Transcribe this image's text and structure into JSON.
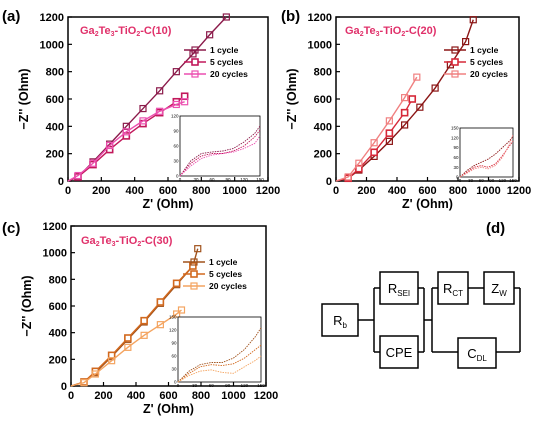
{
  "panels": [
    {
      "letter": "(a)",
      "title": {
        "a": "Ga",
        "s1": "2",
        "b": "Te",
        "s2": "3",
        "c": "-TiO",
        "s3": "2",
        "d": "-C(10)"
      },
      "chart_data": {
        "type": "line",
        "title": "Ga2Te3-TiO2-C(10)",
        "xlabel": "Z' (Ohm)",
        "ylabel": "−Z'' (Ohm)",
        "xlim": [
          0,
          1200
        ],
        "ylim": [
          0,
          1200
        ],
        "xticks": [
          0,
          200,
          400,
          600,
          800,
          1000,
          1200
        ],
        "yticks": [
          0,
          200,
          400,
          600,
          800,
          1000,
          1200
        ],
        "legend_position": "right",
        "series": [
          {
            "name": "1 cycle",
            "color": "#8b1a4a",
            "x": [
              0,
              60,
              150,
              250,
              350,
              450,
              550,
              650,
              750,
              850,
              950
            ],
            "y": [
              0,
              30,
              140,
              270,
              400,
              530,
              660,
              800,
              930,
              1070,
              1200
            ]
          },
          {
            "name": "5 cycles",
            "color": "#c2185b",
            "x": [
              0,
              60,
              150,
              250,
              350,
              450,
              550,
              650,
              700
            ],
            "y": [
              0,
              30,
              120,
              230,
              330,
              420,
              500,
              580,
              620
            ]
          },
          {
            "name": "20 cycles",
            "color": "#ec4fb0",
            "x": [
              0,
              60,
              150,
              250,
              350,
              450,
              550,
              650,
              700
            ],
            "y": [
              0,
              40,
              130,
              260,
              360,
              440,
              510,
              560,
              580
            ]
          }
        ],
        "inset": {
          "xlim": [
            0,
            150
          ],
          "ylim": [
            0,
            120
          ],
          "xticks": [
            0,
            30,
            60,
            90,
            120,
            150
          ],
          "yticks": [
            0,
            30,
            60,
            90,
            120
          ],
          "series": [
            {
              "x": [
                0,
                20,
                40,
                60,
                80,
                100,
                120,
                140,
                150
              ],
              "y": [
                0,
                30,
                45,
                48,
                50,
                55,
                68,
                85,
                100
              ]
            },
            {
              "x": [
                0,
                20,
                40,
                60,
                80,
                100,
                120,
                140,
                150
              ],
              "y": [
                0,
                25,
                40,
                45,
                45,
                50,
                60,
                78,
                92
              ]
            },
            {
              "x": [
                0,
                20,
                40,
                60,
                80,
                100,
                120,
                140,
                150
              ],
              "y": [
                0,
                20,
                35,
                42,
                45,
                48,
                55,
                65,
                80
              ]
            }
          ]
        }
      }
    },
    {
      "letter": "(b)",
      "title": {
        "a": "Ga",
        "s1": "2",
        "b": "Te",
        "s2": "3",
        "c": "-TiO",
        "s3": "2",
        "d": "-C(20)"
      },
      "chart_data": {
        "type": "line",
        "title": "Ga2Te3-TiO2-C(20)",
        "xlabel": "Z' (Ohm)",
        "ylabel": "−Z'' (Ohm)",
        "xlim": [
          0,
          1200
        ],
        "ylim": [
          0,
          1200
        ],
        "xticks": [
          0,
          200,
          400,
          600,
          800,
          1000,
          1200
        ],
        "yticks": [
          0,
          200,
          400,
          600,
          800,
          1000,
          1200
        ],
        "legend_position": "right",
        "series": [
          {
            "name": "1 cycle",
            "color": "#8b1515",
            "x": [
              0,
              80,
              150,
              250,
              350,
              450,
              550,
              650,
              750,
              850,
              900
            ],
            "y": [
              0,
              20,
              80,
              180,
              290,
              410,
              540,
              680,
              850,
              1020,
              1180
            ]
          },
          {
            "name": "5 cycles",
            "color": "#d62839",
            "x": [
              0,
              80,
              150,
              250,
              350,
              450,
              500
            ],
            "y": [
              0,
              20,
              90,
              210,
              350,
              500,
              600
            ]
          },
          {
            "name": "20 cycles",
            "color": "#f08080",
            "x": [
              0,
              80,
              150,
              250,
              350,
              450,
              530
            ],
            "y": [
              0,
              30,
              130,
              280,
              440,
              610,
              760
            ]
          }
        ],
        "inset": {
          "xlim": [
            0,
            150
          ],
          "ylim": [
            0,
            150
          ],
          "xticks": [
            0,
            30,
            60,
            90,
            120,
            150
          ],
          "yticks": [
            0,
            30,
            60,
            90,
            120,
            150
          ],
          "series": [
            {
              "x": [
                0,
                20,
                40,
                60,
                80,
                100,
                120,
                140,
                150
              ],
              "y": [
                0,
                20,
                35,
                45,
                55,
                70,
                90,
                110,
                125
              ]
            },
            {
              "x": [
                0,
                20,
                40,
                60,
                80,
                100,
                120,
                140,
                150
              ],
              "y": [
                0,
                15,
                30,
                35,
                30,
                40,
                65,
                95,
                110
              ]
            },
            {
              "x": [
                0,
                20,
                40,
                60,
                80,
                100,
                120,
                140,
                150
              ],
              "y": [
                0,
                12,
                25,
                30,
                25,
                35,
                60,
                100,
                130
              ]
            }
          ]
        }
      }
    },
    {
      "letter": "(c)",
      "title": {
        "a": "Ga",
        "s1": "2",
        "b": "Te",
        "s2": "3",
        "c": "-TiO",
        "s3": "2",
        "d": "-C(30)"
      },
      "chart_data": {
        "type": "line",
        "title": "Ga2Te3-TiO2-C(30)",
        "xlabel": "Z' (Ohm)",
        "ylabel": "−Z'' (Ohm)",
        "xlim": [
          0,
          1200
        ],
        "ylim": [
          0,
          1200
        ],
        "xticks": [
          0,
          200,
          400,
          600,
          800,
          1000,
          1200
        ],
        "yticks": [
          0,
          200,
          400,
          600,
          800,
          1000,
          1200
        ],
        "legend_position": "right",
        "series": [
          {
            "name": "1 cycle",
            "color": "#a0521c",
            "x": [
              0,
              80,
              150,
              250,
              350,
              450,
              550,
              650,
              750,
              780
            ],
            "y": [
              0,
              30,
              100,
              220,
              350,
              480,
              620,
              760,
              900,
              1030
            ]
          },
          {
            "name": "5 cycles",
            "color": "#d2691e",
            "x": [
              0,
              80,
              150,
              250,
              350,
              450,
              550,
              650,
              750
            ],
            "y": [
              0,
              30,
              110,
              230,
              360,
              490,
              630,
              770,
              900
            ]
          },
          {
            "name": "20 cycles",
            "color": "#f4a460",
            "x": [
              0,
              80,
              150,
              250,
              350,
              450,
              550,
              650,
              680
            ],
            "y": [
              0,
              25,
              90,
              190,
              290,
              380,
              460,
              540,
              570
            ]
          }
        ],
        "inset": {
          "xlim": [
            0,
            150
          ],
          "ylim": [
            0,
            150
          ],
          "xticks": [
            0,
            30,
            60,
            90,
            120,
            150
          ],
          "yticks": [
            0,
            30,
            60,
            90,
            120,
            150
          ],
          "series": [
            {
              "x": [
                0,
                20,
                40,
                60,
                80,
                100,
                120,
                140,
                150
              ],
              "y": [
                0,
                25,
                40,
                45,
                45,
                55,
                75,
                105,
                125
              ]
            },
            {
              "x": [
                0,
                20,
                40,
                60,
                80,
                100,
                120,
                140,
                150
              ],
              "y": [
                0,
                20,
                35,
                40,
                38,
                42,
                55,
                75,
                85
              ]
            },
            {
              "x": [
                0,
                20,
                40,
                60,
                80,
                100,
                120,
                140,
                150
              ],
              "y": [
                0,
                15,
                25,
                28,
                22,
                20,
                35,
                50,
                60
              ]
            }
          ]
        }
      }
    }
  ],
  "circuit": {
    "letter": "(d)",
    "labels": {
      "rb": {
        "main": "R",
        "sub": "b"
      },
      "rsei": {
        "main": "R",
        "sub": "SEI"
      },
      "cpe": {
        "main": "CPE",
        "sub": ""
      },
      "rct": {
        "main": "R",
        "sub": "CT"
      },
      "zw": {
        "main": "Z",
        "sub": "W"
      },
      "cdl": {
        "main": "C",
        "sub": "DL"
      }
    }
  }
}
